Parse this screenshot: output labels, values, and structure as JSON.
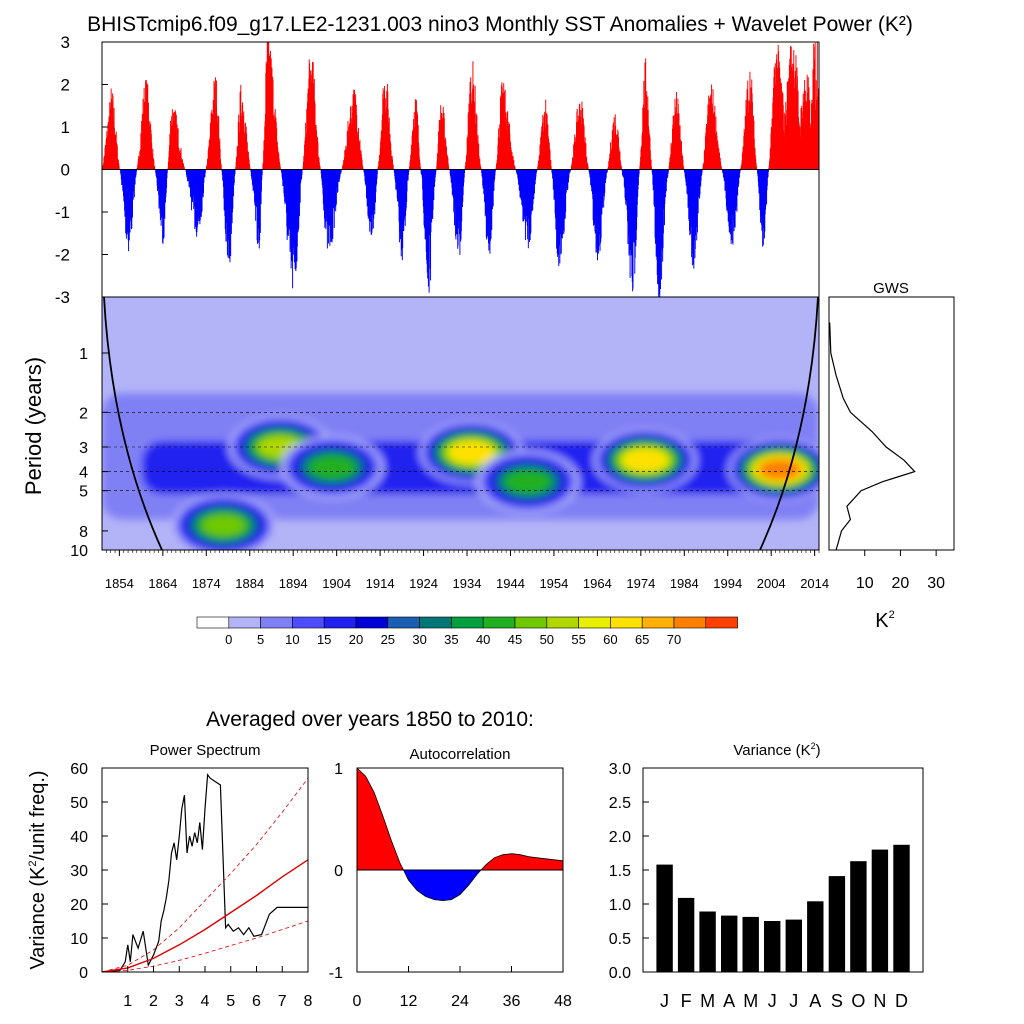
{
  "colors": {
    "positive": "#ff0000",
    "negative": "#0000ff",
    "wavelet_levels": [
      "#ffffff",
      "#b3b3f8",
      "#8080f5",
      "#4d4dff",
      "#2020f0",
      "#0000d8",
      "#1a5fb4",
      "#007777",
      "#00a040",
      "#20b020",
      "#70c800",
      "#b0d800",
      "#e8f000",
      "#ffe000",
      "#ffb000",
      "#ff8000",
      "#ff4000",
      "#ff0000"
    ],
    "red_noise": "#dd0000",
    "bars": "#000000"
  },
  "figure": {
    "title": "BHISTcmip6.f09_g17.LE2-1231.003 nino3 Monthly SST Anomalies + Wavelet Power (K²)",
    "subtitle": "Averaged over years 1850 to 2010:"
  },
  "chart_data": [
    {
      "id": "anomaly_timeseries",
      "type": "bar",
      "ylim": [
        -3,
        3
      ],
      "yticks": [
        "3",
        "2",
        "1",
        "0",
        "-1",
        "-2",
        "-3"
      ],
      "x_range_years": [
        1850,
        2015
      ],
      "note_positive_color": "red",
      "note_negative_color": "blue",
      "approx_peaks": [
        {
          "year": 1852,
          "value": 1.8
        },
        {
          "year": 1856,
          "value": -1.8
        },
        {
          "year": 1860,
          "value": 2.0
        },
        {
          "year": 1864,
          "value": -1.6
        },
        {
          "year": 1866,
          "value": 1.5
        },
        {
          "year": 1872,
          "value": -1.5
        },
        {
          "year": 1876,
          "value": 2.1
        },
        {
          "year": 1879,
          "value": -2.4
        },
        {
          "year": 1882,
          "value": 1.9
        },
        {
          "year": 1886,
          "value": -1.8
        },
        {
          "year": 1888,
          "value": 3.0
        },
        {
          "year": 1894,
          "value": -2.8
        },
        {
          "year": 1898,
          "value": 2.6
        },
        {
          "year": 1902,
          "value": -1.9
        },
        {
          "year": 1908,
          "value": 1.8
        },
        {
          "year": 1912,
          "value": -1.6
        },
        {
          "year": 1915,
          "value": 2.2
        },
        {
          "year": 1919,
          "value": -2.0
        },
        {
          "year": 1922,
          "value": 1.7
        },
        {
          "year": 1925,
          "value": -2.9
        },
        {
          "year": 1928,
          "value": 1.5
        },
        {
          "year": 1932,
          "value": -2.0
        },
        {
          "year": 1935,
          "value": 2.4
        },
        {
          "year": 1939,
          "value": -1.9
        },
        {
          "year": 1942,
          "value": 1.9
        },
        {
          "year": 1948,
          "value": -1.7
        },
        {
          "year": 1952,
          "value": 1.6
        },
        {
          "year": 1955,
          "value": -2.2
        },
        {
          "year": 1960,
          "value": 1.6
        },
        {
          "year": 1964,
          "value": -2.0
        },
        {
          "year": 1968,
          "value": 1.3
        },
        {
          "year": 1972,
          "value": -2.9
        },
        {
          "year": 1975,
          "value": 2.4
        },
        {
          "year": 1978,
          "value": -2.9
        },
        {
          "year": 1982,
          "value": 1.7
        },
        {
          "year": 1986,
          "value": -2.2
        },
        {
          "year": 1990,
          "value": 1.9
        },
        {
          "year": 1995,
          "value": -1.7
        },
        {
          "year": 1999,
          "value": 2.3
        },
        {
          "year": 2002,
          "value": -1.8
        },
        {
          "year": 2005,
          "value": 2.8
        },
        {
          "year": 2009,
          "value": 3.0
        },
        {
          "year": 2012,
          "value": 2.2
        },
        {
          "year": 2014,
          "value": 3.0
        }
      ]
    },
    {
      "id": "wavelet_power",
      "type": "heatmap",
      "ylabel": "Period (years)",
      "yticks": [
        "1",
        "2",
        "3",
        "4",
        "5",
        "8",
        "10"
      ],
      "xticks": [
        "1854",
        "1864",
        "1874",
        "1884",
        "1894",
        "1904",
        "1914",
        "1924",
        "1934",
        "1944",
        "1954",
        "1964",
        "1974",
        "1984",
        "1994",
        "2004",
        "2014"
      ],
      "colorbar_labels": [
        "0",
        "5",
        "10",
        "15",
        "20",
        "25",
        "30",
        "35",
        "40",
        "45",
        "50",
        "55",
        "60",
        "65",
        "70"
      ],
      "approx_maxima": [
        {
          "year": 1878,
          "period": 7.5,
          "power": 45
        },
        {
          "year": 1891,
          "period": 3.0,
          "power": 52
        },
        {
          "year": 1903,
          "period": 3.8,
          "power": 40
        },
        {
          "year": 1935,
          "period": 3.2,
          "power": 62
        },
        {
          "year": 1948,
          "period": 4.5,
          "power": 40
        },
        {
          "year": 1975,
          "period": 3.5,
          "power": 62
        },
        {
          "year": 2006,
          "period": 3.9,
          "power": 72
        }
      ]
    },
    {
      "id": "global_wavelet_spectrum",
      "type": "line",
      "title": "GWS",
      "xlabel": "K²",
      "xticks": [
        "10",
        "20",
        "30"
      ],
      "xlim": [
        0,
        35
      ],
      "points": [
        {
          "period": 0.7,
          "power": 0.2
        },
        {
          "period": 1.0,
          "power": 0.5
        },
        {
          "period": 1.3,
          "power": 2.0
        },
        {
          "period": 1.7,
          "power": 4.0
        },
        {
          "period": 2.0,
          "power": 6.0
        },
        {
          "period": 2.5,
          "power": 12.0
        },
        {
          "period": 3.0,
          "power": 16.0
        },
        {
          "period": 3.5,
          "power": 21.0
        },
        {
          "period": 4.0,
          "power": 24.0
        },
        {
          "period": 4.5,
          "power": 15.0
        },
        {
          "period": 5.0,
          "power": 9.0
        },
        {
          "period": 6.0,
          "power": 5.0
        },
        {
          "period": 7.0,
          "power": 6.0
        },
        {
          "period": 8.0,
          "power": 3.5
        },
        {
          "period": 10.0,
          "power": 2.0
        }
      ]
    },
    {
      "id": "power_spectrum",
      "type": "line",
      "title": "Power Spectrum",
      "ylabel": "Variance (K²/unit freq.)",
      "ylim": [
        0,
        60
      ],
      "yticks": [
        "60",
        "50",
        "40",
        "30",
        "20",
        "10",
        "0"
      ],
      "xticks": [
        "1",
        "2",
        "3",
        "4",
        "5",
        "6",
        "7",
        "8"
      ],
      "xlim": [
        0,
        8
      ],
      "series": [
        {
          "style": "spectrum",
          "points": [
            [
              0.2,
              0
            ],
            [
              0.7,
              0.5
            ],
            [
              0.9,
              3
            ],
            [
              1.0,
              8
            ],
            [
              1.1,
              3
            ],
            [
              1.2,
              11
            ],
            [
              1.4,
              7
            ],
            [
              1.6,
              12
            ],
            [
              1.8,
              2
            ],
            [
              2.0,
              5
            ],
            [
              2.2,
              9
            ],
            [
              2.3,
              15
            ],
            [
              2.4,
              18
            ],
            [
              2.5,
              22
            ],
            [
              2.6,
              27
            ],
            [
              2.7,
              35
            ],
            [
              2.8,
              38
            ],
            [
              2.9,
              33
            ],
            [
              3.0,
              40
            ],
            [
              3.1,
              48
            ],
            [
              3.2,
              52
            ],
            [
              3.3,
              35
            ],
            [
              3.4,
              40
            ],
            [
              3.5,
              37
            ],
            [
              3.6,
              41
            ],
            [
              3.7,
              38
            ],
            [
              3.8,
              44
            ],
            [
              3.9,
              36
            ],
            [
              4.0,
              48
            ],
            [
              4.1,
              58
            ],
            [
              4.2,
              57
            ],
            [
              4.4,
              56
            ],
            [
              4.6,
              55
            ],
            [
              4.8,
              13
            ],
            [
              4.9,
              14
            ],
            [
              5.1,
              12
            ],
            [
              5.3,
              13
            ],
            [
              5.5,
              11
            ],
            [
              5.7,
              13
            ],
            [
              5.9,
              10.5
            ],
            [
              6.2,
              11
            ],
            [
              6.5,
              17
            ],
            [
              6.8,
              19
            ],
            [
              7.2,
              19
            ],
            [
              7.6,
              19
            ],
            [
              8.0,
              19
            ]
          ]
        },
        {
          "style": "red_noise",
          "points": [
            [
              0,
              0
            ],
            [
              1,
              1.2
            ],
            [
              2,
              4
            ],
            [
              3,
              8
            ],
            [
              4,
              12.5
            ],
            [
              5,
              17.5
            ],
            [
              6,
              22.5
            ],
            [
              7,
              28
            ],
            [
              8,
              33
            ]
          ]
        },
        {
          "style": "confidence_upper",
          "points": [
            [
              0,
              0
            ],
            [
              1,
              2
            ],
            [
              2,
              6.5
            ],
            [
              3,
              13
            ],
            [
              4,
              21
            ],
            [
              5,
              29
            ],
            [
              6,
              37.5
            ],
            [
              7,
              47
            ],
            [
              8,
              57
            ]
          ]
        },
        {
          "style": "confidence_lower",
          "points": [
            [
              0,
              0
            ],
            [
              1,
              0.5
            ],
            [
              2,
              1.7
            ],
            [
              3,
              3.4
            ],
            [
              4,
              5.5
            ],
            [
              5,
              7.8
            ],
            [
              6,
              10
            ],
            [
              7,
              12.5
            ],
            [
              8,
              15
            ]
          ]
        }
      ]
    },
    {
      "id": "autocorrelation",
      "type": "area",
      "title": "Autocorrelation",
      "ylim": [
        -1,
        1
      ],
      "yticks": [
        "1",
        "0",
        "-1"
      ],
      "xticks": [
        "0",
        "12",
        "24",
        "36",
        "48"
      ],
      "xlim": [
        0,
        48
      ],
      "lags": [
        0,
        2,
        4,
        6,
        8,
        10,
        12,
        14,
        16,
        18,
        20,
        22,
        24,
        26,
        28,
        30,
        32,
        34,
        36,
        38,
        40,
        42,
        44,
        46,
        48
      ],
      "values": [
        1.0,
        0.92,
        0.76,
        0.53,
        0.29,
        0.07,
        -0.1,
        -0.2,
        -0.26,
        -0.29,
        -0.3,
        -0.29,
        -0.24,
        -0.15,
        -0.04,
        0.05,
        0.12,
        0.15,
        0.16,
        0.15,
        0.13,
        0.12,
        0.11,
        0.1,
        0.09
      ]
    },
    {
      "id": "monthly_variance",
      "type": "bar",
      "title": "Variance (K²)",
      "ylim": [
        0,
        3.0
      ],
      "yticks": [
        "3.0",
        "2.5",
        "2.0",
        "1.5",
        "1.0",
        "0.5",
        "0.0"
      ],
      "categories": [
        "J",
        "F",
        "M",
        "A",
        "M",
        "J",
        "J",
        "A",
        "S",
        "O",
        "N",
        "D"
      ],
      "values": [
        1.58,
        1.09,
        0.89,
        0.83,
        0.81,
        0.75,
        0.77,
        1.04,
        1.41,
        1.63,
        1.8,
        1.87
      ]
    }
  ]
}
